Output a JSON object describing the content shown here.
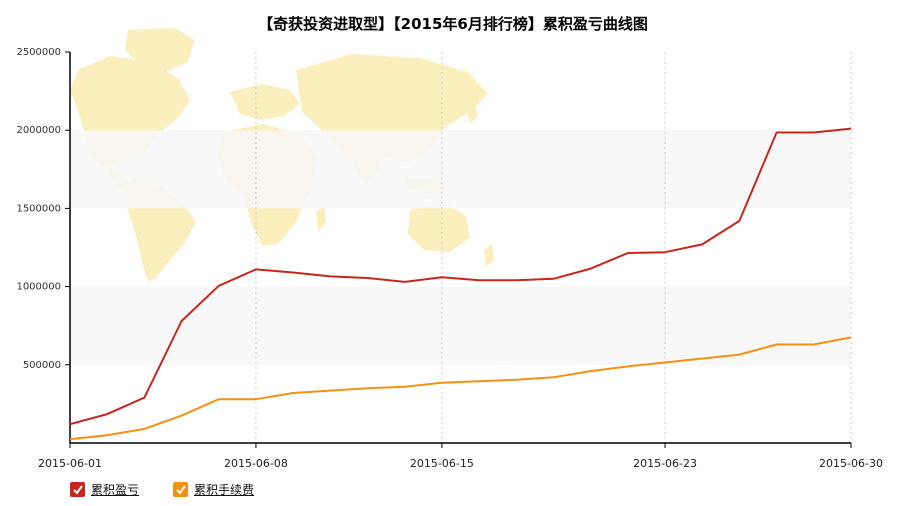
{
  "chart_data": {
    "type": "line",
    "title": "【奇获投资进取型】【2015年6月排行榜】累积盈亏曲线图",
    "x": [
      "2015-06-01",
      "2015-06-02",
      "2015-06-03",
      "2015-06-04",
      "2015-06-05",
      "2015-06-08",
      "2015-06-09",
      "2015-06-10",
      "2015-06-11",
      "2015-06-12",
      "2015-06-15",
      "2015-06-16",
      "2015-06-17",
      "2015-06-18",
      "2015-06-19",
      "2015-06-22",
      "2015-06-23",
      "2015-06-24",
      "2015-06-25",
      "2015-06-26",
      "2015-06-29",
      "2015-06-30"
    ],
    "x_tick_labels": [
      "2015-06-01",
      "2015-06-08",
      "2015-06-15",
      "2015-06-23",
      "2015-06-30"
    ],
    "y_tick_labels": [
      "500000",
      "1000000",
      "1500000",
      "2000000",
      "2500000"
    ],
    "ylim": [
      0,
      2500000
    ],
    "series": [
      {
        "name": "累积盈亏",
        "color": "#c8261d",
        "values": [
          120000,
          185000,
          290000,
          780000,
          1005000,
          1110000,
          1090000,
          1065000,
          1055000,
          1030000,
          1060000,
          1040000,
          1040000,
          1050000,
          1115000,
          1215000,
          1220000,
          1270000,
          1420000,
          1985000,
          1985000,
          2010000
        ]
      },
      {
        "name": "累积手续费",
        "color": "#f39212",
        "values": [
          25000,
          50000,
          90000,
          175000,
          280000,
          280000,
          320000,
          335000,
          350000,
          360000,
          385000,
          395000,
          405000,
          420000,
          460000,
          490000,
          515000,
          540000,
          565000,
          630000,
          630000,
          675000
        ]
      }
    ],
    "grid": {
      "vertical_dotted": true,
      "horizontal_bands": true
    },
    "legend": "bottom-left"
  }
}
